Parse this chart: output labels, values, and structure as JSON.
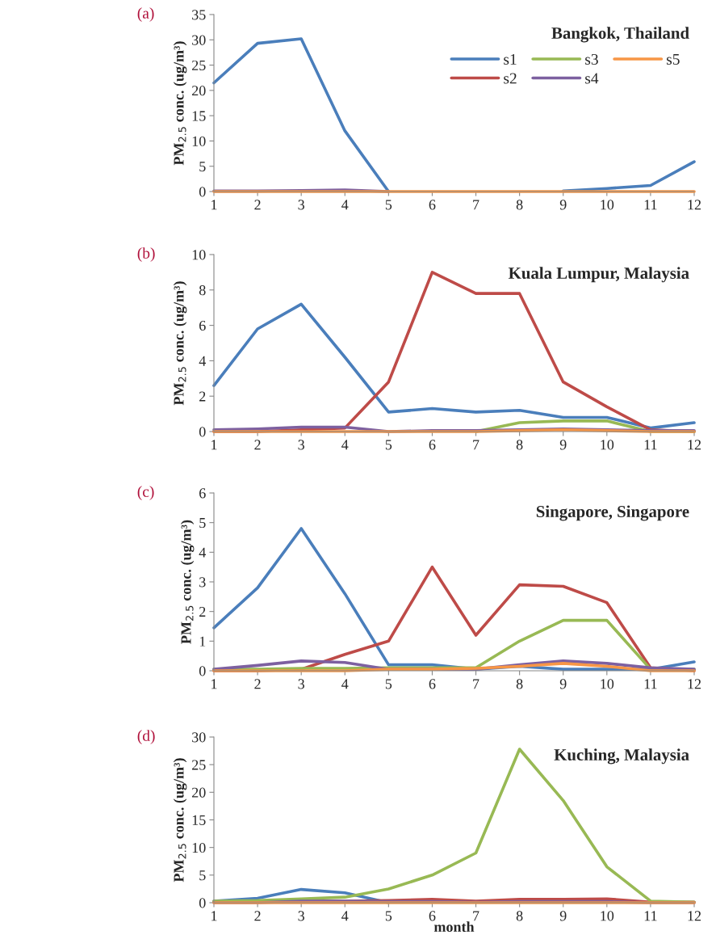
{
  "chart_data": [
    {
      "type": "line",
      "title": "Bangkok, Thailand",
      "ylabel": "PM$_{2.5}$ conc. (ug/m³)",
      "annotations": [
        "(a)"
      ],
      "x": [
        1,
        2,
        3,
        4,
        5,
        6,
        7,
        8,
        9,
        10,
        11,
        12
      ],
      "xlim": [
        1,
        12
      ],
      "xticks": [
        1,
        2,
        3,
        4,
        5,
        6,
        7,
        8,
        9,
        10,
        11,
        12
      ],
      "ylim": [
        0,
        35
      ],
      "yticks": [
        0,
        5,
        10,
        15,
        20,
        25,
        30,
        35
      ],
      "legend": "top right",
      "series": [
        {
          "name": "s1",
          "color": "#4a7ebb",
          "values": [
            21.5,
            29.3,
            30.2,
            12,
            0,
            null,
            null,
            null,
            0.1,
            0.6,
            1.2,
            5.9
          ]
        },
        {
          "name": "s2",
          "color": "#be4b48",
          "values": [
            null,
            null,
            null,
            null,
            null,
            null,
            null,
            null,
            null,
            null,
            null,
            null
          ]
        },
        {
          "name": "s3",
          "color": "#98b954",
          "values": [
            null,
            null,
            null,
            null,
            null,
            null,
            null,
            null,
            null,
            null,
            null,
            null
          ]
        },
        {
          "name": "s4",
          "color": "#7d60a0",
          "values": [
            0.1,
            0.1,
            0.2,
            0.3,
            0,
            null,
            null,
            null,
            null,
            null,
            null,
            null
          ]
        },
        {
          "name": "s5",
          "color": "#f79646",
          "values": [
            0,
            0,
            0,
            0,
            0,
            0,
            0,
            0,
            0,
            0,
            0,
            0
          ]
        }
      ]
    },
    {
      "type": "line",
      "title": "Kuala Lumpur, Malaysia",
      "ylabel": "PM$_{2.5}$ conc. (ug/m³)",
      "annotations": [
        "(b)"
      ],
      "x": [
        1,
        2,
        3,
        4,
        5,
        6,
        7,
        8,
        9,
        10,
        11,
        12
      ],
      "xlim": [
        1,
        12
      ],
      "xticks": [
        1,
        2,
        3,
        4,
        5,
        6,
        7,
        8,
        9,
        10,
        11,
        12
      ],
      "ylim": [
        0,
        10
      ],
      "yticks": [
        0,
        2,
        4,
        6,
        8,
        10
      ],
      "series": [
        {
          "color": "#4a7ebb",
          "values": [
            2.6,
            5.8,
            7.2,
            4.2,
            1.1,
            1.3,
            1.1,
            1.2,
            0.8,
            0.8,
            0.2,
            0.5
          ]
        },
        {
          "color": "#be4b48",
          "values": [
            0,
            0,
            0.1,
            0.2,
            2.8,
            9.0,
            7.8,
            7.8,
            2.8,
            1.4,
            0.1,
            0
          ]
        },
        {
          "color": "#98b954",
          "values": [
            null,
            null,
            null,
            null,
            null,
            null,
            0,
            0.5,
            0.6,
            0.6,
            0,
            0
          ]
        },
        {
          "color": "#7d60a0",
          "values": [
            0.1,
            0.15,
            0.25,
            0.25,
            0,
            0.05,
            0.05,
            0.1,
            0.15,
            0.1,
            0.05,
            0.05
          ]
        },
        {
          "color": "#f79646",
          "values": [
            0,
            0,
            0,
            0,
            0,
            0,
            0,
            0.05,
            0.1,
            0.05,
            0,
            0
          ]
        }
      ]
    },
    {
      "type": "line",
      "title": "Singapore, Singapore",
      "ylabel": "PM$_{2.5}$ conc. (ug/m³)",
      "annotations": [
        "(c)"
      ],
      "x": [
        1,
        2,
        3,
        4,
        5,
        6,
        7,
        8,
        9,
        10,
        11,
        12
      ],
      "xlim": [
        1,
        12
      ],
      "xticks": [
        1,
        2,
        3,
        4,
        5,
        6,
        7,
        8,
        9,
        10,
        11,
        12
      ],
      "ylim": [
        0,
        6
      ],
      "yticks": [
        0,
        1,
        2,
        3,
        4,
        5,
        6
      ],
      "series": [
        {
          "color": "#4a7ebb",
          "values": [
            1.45,
            2.8,
            4.8,
            2.6,
            0.2,
            0.2,
            0.05,
            0.15,
            0.05,
            0.05,
            0.05,
            0.3
          ]
        },
        {
          "color": "#be4b48",
          "values": [
            0,
            0,
            0.05,
            0.55,
            1.0,
            3.5,
            1.2,
            2.9,
            2.85,
            2.3,
            0.1,
            0
          ]
        },
        {
          "color": "#98b954",
          "values": [
            0.05,
            0.05,
            0.08,
            0.08,
            0.1,
            0.1,
            0.1,
            1.0,
            1.7,
            1.7,
            0.05,
            0.05
          ]
        },
        {
          "color": "#7d60a0",
          "values": [
            0.05,
            0.18,
            0.33,
            0.28,
            0.05,
            0.05,
            0.05,
            0.2,
            0.33,
            0.25,
            0.1,
            0.05
          ]
        },
        {
          "color": "#f79646",
          "values": [
            0,
            0,
            0,
            0,
            0.05,
            0.05,
            0.08,
            0.15,
            0.25,
            0.15,
            0,
            0
          ]
        }
      ]
    },
    {
      "type": "line",
      "title": "Kuching, Malaysia",
      "ylabel": "PM$_{2.5}$ conc. (ug/m³)",
      "xlabel": "month",
      "annotations": [
        "(d)"
      ],
      "x": [
        1,
        2,
        3,
        4,
        5,
        6,
        7,
        8,
        9,
        10,
        11,
        12
      ],
      "xlim": [
        1,
        12
      ],
      "xticks": [
        1,
        2,
        3,
        4,
        5,
        6,
        7,
        8,
        9,
        10,
        11,
        12
      ],
      "ylim": [
        0,
        30
      ],
      "yticks": [
        0,
        5,
        10,
        15,
        20,
        25,
        30
      ],
      "series": [
        {
          "color": "#4a7ebb",
          "values": [
            0.3,
            0.8,
            2.4,
            1.8,
            0,
            null,
            null,
            null,
            null,
            null,
            null,
            null
          ]
        },
        {
          "color": "#be4b48",
          "values": [
            0.2,
            0.2,
            0.3,
            0.3,
            0.4,
            0.6,
            0.3,
            0.6,
            0.6,
            0.7,
            0.1,
            0.1
          ]
        },
        {
          "color": "#98b954",
          "values": [
            0.3,
            0.4,
            0.7,
            1.0,
            2.5,
            5.0,
            9.0,
            27.8,
            18.5,
            6.5,
            0.3,
            0.1
          ]
        },
        {
          "color": "#7d60a0",
          "values": [
            0,
            0,
            0.3,
            0.3,
            0.2,
            0.2,
            0.1,
            0.2,
            0.2,
            0.2,
            0,
            0
          ]
        },
        {
          "color": "#f79646",
          "values": [
            0,
            0,
            0,
            0,
            0,
            0,
            0,
            0,
            0,
            0,
            0,
            0
          ]
        }
      ]
    }
  ]
}
